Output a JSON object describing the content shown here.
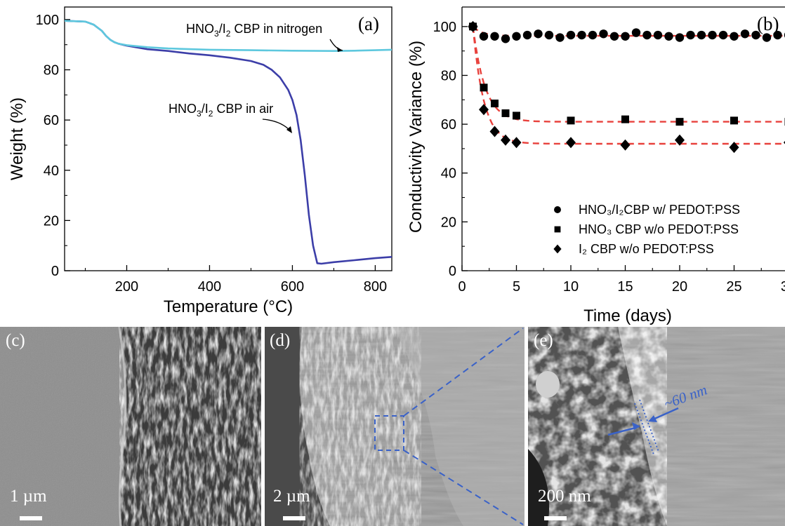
{
  "panel_labels": {
    "a": "(a)",
    "b": "(b)",
    "c": "(c)",
    "d": "(d)",
    "e": "(e)"
  },
  "chart_data": [
    {
      "panel": "(a)",
      "type": "line",
      "xlabel": "Temperature (°C)",
      "ylabel": "Weight (%)",
      "xlim": [
        50,
        840
      ],
      "ylim": [
        0,
        105
      ],
      "xticks": [
        200,
        400,
        600,
        800
      ],
      "yticks": [
        0,
        20,
        40,
        60,
        80,
        100
      ],
      "grid": false,
      "annotations": [
        "HNO3/I2 CBP in nitrogen",
        "HNO3/I2 CBP in air"
      ],
      "series": [
        {
          "name": "HNO3/I2 CBP in nitrogen",
          "color": "#5ec8de",
          "x": [
            50,
            100,
            120,
            140,
            150,
            160,
            170,
            180,
            200,
            250,
            300,
            400,
            500,
            600,
            700,
            750,
            800,
            840
          ],
          "y": [
            99.5,
            99.2,
            98,
            95.5,
            93.5,
            92,
            91,
            90.4,
            89.8,
            89,
            88.5,
            88,
            87.8,
            87.6,
            87.5,
            87.6,
            87.8,
            88
          ]
        },
        {
          "name": "HNO3/I2 CBP in air",
          "color": "#3c3ea8",
          "x": [
            50,
            100,
            120,
            140,
            150,
            160,
            170,
            180,
            200,
            250,
            300,
            350,
            400,
            450,
            500,
            530,
            550,
            570,
            590,
            600,
            610,
            620,
            630,
            640,
            650,
            660,
            670,
            700,
            750,
            800,
            840
          ],
          "y": [
            99.5,
            99.2,
            98,
            95.5,
            93.5,
            92,
            91,
            90.4,
            89.6,
            88.2,
            87.5,
            86.5,
            85.8,
            84.8,
            83.5,
            82,
            80,
            77,
            72,
            68,
            62,
            52,
            38,
            22,
            10,
            3,
            2.8,
            3.4,
            4.2,
            5,
            5.5
          ]
        }
      ]
    },
    {
      "panel": "(b)",
      "type": "scatter",
      "xlabel": "Time (days)",
      "ylabel": "Conductivity Variance (%)",
      "xlim": [
        0,
        32
      ],
      "ylim": [
        0,
        108
      ],
      "xticks": [
        0,
        5,
        10,
        15,
        20,
        25,
        30
      ],
      "yticks": [
        0,
        20,
        40,
        60,
        80,
        100
      ],
      "grid": false,
      "legend_position": "bottom-right",
      "fit_color": "#e8413c",
      "series": [
        {
          "name": "HNO₃/I₂CBP w/ PEDOT:PSS",
          "marker": "circle",
          "x": [
            1,
            2,
            3,
            4,
            5,
            6,
            7,
            8,
            9,
            10,
            11,
            12,
            13,
            14,
            15,
            16,
            17,
            18,
            19,
            20,
            21,
            22,
            23,
            24,
            25,
            26,
            27,
            28,
            29,
            30,
            31
          ],
          "y": [
            100,
            96,
            96,
            95,
            96,
            96.5,
            97,
            96.5,
            95.5,
            96.5,
            96.5,
            96.5,
            97,
            96,
            96,
            97.5,
            96.5,
            96.5,
            96,
            95.5,
            96.5,
            96.5,
            96.5,
            96.5,
            96,
            97,
            96.5,
            95.5,
            96.5,
            96.5,
            97
          ],
          "fit": {
            "plateau": 96.2,
            "drop": 3.8,
            "rate": 1.2
          }
        },
        {
          "name": "HNO₃ CBP w/o PEDOT:PSS",
          "marker": "square",
          "x": [
            1,
            2,
            3,
            4,
            5,
            10,
            15,
            20,
            25,
            30
          ],
          "y": [
            100,
            75,
            68.5,
            64.5,
            63.5,
            61.5,
            62,
            61,
            61.5,
            61
          ],
          "fit": {
            "plateau": 61,
            "drop": 39,
            "rate": 0.9
          }
        },
        {
          "name": "I₂ CBP w/o PEDOT:PSS",
          "marker": "diamond",
          "x": [
            1,
            2,
            3,
            4,
            5,
            10,
            15,
            20,
            25,
            30
          ],
          "y": [
            100,
            66,
            57,
            53.5,
            52.5,
            52.5,
            51.5,
            53.5,
            50.5,
            52.5
          ],
          "fit": {
            "plateau": 52,
            "drop": 48,
            "rate": 1.0
          }
        }
      ]
    }
  ],
  "annotations_text": {
    "a_nitrogen": {
      "pre": "HNO",
      "sub1": "3",
      "mid": "/I",
      "sub2": "2",
      "post": " CBP in nitrogen"
    },
    "a_air": {
      "pre": "HNO",
      "sub1": "3",
      "mid": "/I",
      "sub2": "2",
      "post": " CBP in air"
    }
  },
  "sem": {
    "c": {
      "scale": "1 µm"
    },
    "d": {
      "scale": "2 µm"
    },
    "e": {
      "scale": "200 nm",
      "measure": "~60 nm"
    },
    "arrow_color": "#3a62c8"
  }
}
